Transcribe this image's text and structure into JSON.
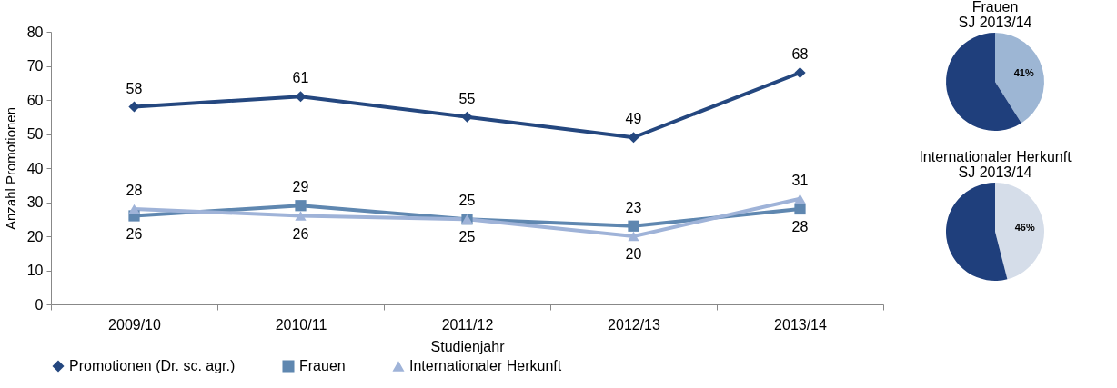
{
  "chart_data": [
    {
      "type": "line",
      "ylabel": "Anzahl Promotionen",
      "xlabel": "Studienjahr",
      "categories": [
        "2009/10",
        "2010/11",
        "2011/12",
        "2012/13",
        "2013/14"
      ],
      "series": [
        {
          "name": "Promotionen (Dr. sc. agr.)",
          "color": "#24477f",
          "marker": "diamond",
          "values": [
            58,
            61,
            55,
            49,
            68
          ]
        },
        {
          "name": "Frauen",
          "color": "#5f87b0",
          "marker": "square",
          "values": [
            26,
            29,
            25,
            23,
            28
          ]
        },
        {
          "name": "Internationaler Herkunft",
          "color": "#9fb3d8",
          "marker": "triangle",
          "values": [
            28,
            26,
            25,
            20,
            31
          ]
        }
      ],
      "ylim": [
        0,
        80
      ],
      "yticks": [
        0,
        10,
        20,
        30,
        40,
        50,
        60,
        70,
        80
      ],
      "legend": "bottom",
      "data_labels": true,
      "line_style": "solid"
    },
    {
      "type": "pie",
      "title": "Frauen\nSJ 2013/14",
      "categories": [
        null,
        null
      ],
      "values": [
        41,
        59
      ],
      "colors": [
        "#9db6d4",
        "#1f3f7c"
      ],
      "value_labels": [
        "41%",
        null
      ]
    },
    {
      "type": "pie",
      "title": "Internationaler Herkunft\nSJ 2013/14",
      "categories": [
        null,
        null
      ],
      "values": [
        46,
        54
      ],
      "colors": [
        "#d5dde9",
        "#1f3f7c"
      ],
      "value_labels": [
        "46%",
        null
      ]
    }
  ]
}
